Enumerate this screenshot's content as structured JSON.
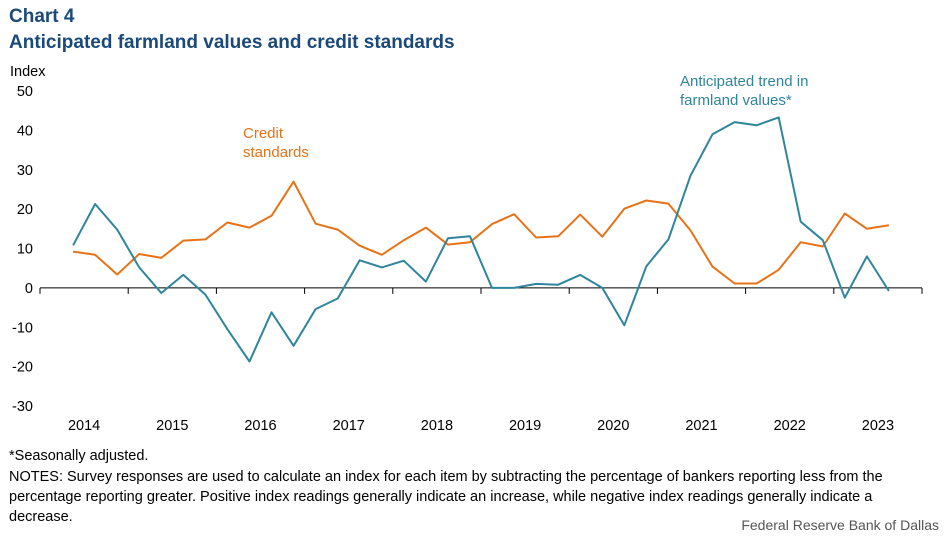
{
  "header": {
    "chart_number": "Chart 4",
    "title": "Anticipated farmland values and credit standards"
  },
  "chart_data": {
    "type": "line",
    "title": "Anticipated farmland values and credit standards",
    "ylabel": "Index",
    "xlabel": "",
    "ylim": [
      -30,
      50
    ],
    "yticks": [
      50,
      40,
      30,
      20,
      10,
      0,
      -10,
      -20,
      -30
    ],
    "ytick_labels": [
      "50",
      "40",
      "30",
      "20",
      "10",
      "0",
      "-10",
      "-20",
      "-30"
    ],
    "categories": [
      "2014",
      "2015",
      "2016",
      "2017",
      "2018",
      "2019",
      "2020",
      "2021",
      "2022",
      "2023"
    ],
    "x": [
      "2013Q4",
      "2014Q1",
      "2014Q2",
      "2014Q3",
      "2014Q4",
      "2015Q1",
      "2015Q2",
      "2015Q3",
      "2015Q4",
      "2016Q1",
      "2016Q2",
      "2016Q3",
      "2016Q4",
      "2017Q1",
      "2017Q2",
      "2017Q3",
      "2017Q4",
      "2018Q1",
      "2018Q2",
      "2018Q3",
      "2018Q4",
      "2019Q1",
      "2019Q2",
      "2019Q3",
      "2019Q4",
      "2020Q1",
      "2020Q2",
      "2020Q3",
      "2020Q4",
      "2021Q1",
      "2021Q2",
      "2021Q3",
      "2021Q4",
      "2022Q1",
      "2022Q2",
      "2022Q3",
      "2022Q4",
      "2023Q1"
    ],
    "series": [
      {
        "name": "Credit standards",
        "label_lines": [
          "Credit",
          "standards"
        ],
        "color": "#e67318",
        "values": [
          9.2,
          8.4,
          3.4,
          8.6,
          7.6,
          12,
          12.3,
          16.6,
          15.3,
          18.3,
          27,
          16.3,
          14.8,
          10.7,
          8.4,
          12.1,
          15.3,
          11,
          11.6,
          16.2,
          18.7,
          12.8,
          13.1,
          18.6,
          13,
          20.1,
          22.2,
          21.4,
          14.6,
          5.4,
          1.1,
          1.1,
          4.6,
          11.6,
          10.5,
          18.9,
          15,
          15.9
        ]
      },
      {
        "name": "Anticipated trend in farmland values*",
        "label_lines": [
          "Anticipated trend in",
          "farmland values*"
        ],
        "color": "#2f859c",
        "values": [
          10.8,
          21.3,
          14.8,
          5.2,
          -1.3,
          3.3,
          -1.7,
          -10.5,
          -18.7,
          -6.2,
          -14.7,
          -5.4,
          -2.7,
          7,
          5.2,
          6.9,
          1.6,
          12.6,
          13.1,
          0,
          0,
          1,
          0.8,
          3.3,
          0,
          -9.5,
          5.5,
          12.3,
          28.5,
          39,
          42.1,
          41.3,
          43.3,
          16.8,
          12.1,
          -2.5,
          8,
          -0.8
        ]
      }
    ],
    "grid": false,
    "legend": "inline labels"
  },
  "footer": {
    "footnote": "*Seasonally adjusted.",
    "notes": "NOTES: Survey responses are used to calculate an index for each item by subtracting the percentage of bankers reporting less from the percentage reporting greater. Positive index readings generally indicate an increase, while negative index readings generally indicate a decrease.",
    "source": "Federal Reserve Bank of Dallas"
  }
}
